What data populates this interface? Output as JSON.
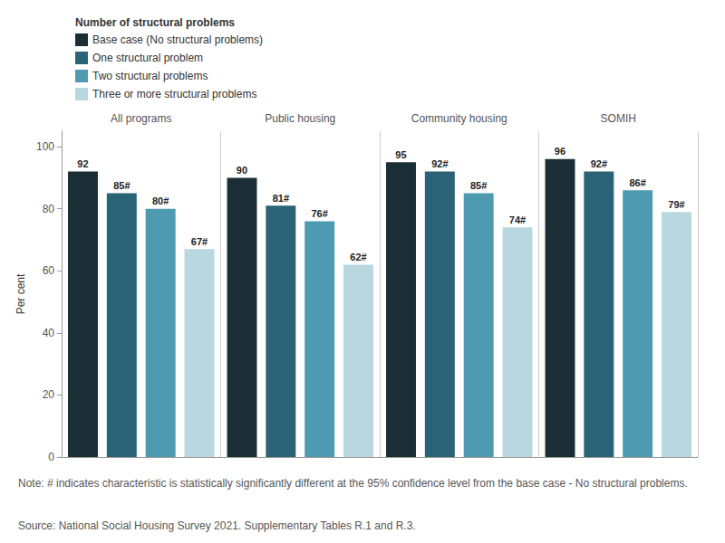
{
  "chart_data": {
    "type": "bar",
    "legend_title": "Number of structural problems",
    "categories": [
      "All programs",
      "Public housing",
      "Community housing",
      "SOMIH"
    ],
    "series": [
      {
        "name": "Base case (No structural problems)",
        "color": "#1b2e36",
        "values": [
          92,
          90,
          95,
          96
        ],
        "value_labels": [
          "92",
          "90",
          "95",
          "96"
        ]
      },
      {
        "name": "One structural problem",
        "color": "#2a6376",
        "values": [
          85,
          81,
          92,
          92
        ],
        "value_labels": [
          "85#",
          "81#",
          "92#",
          "92#"
        ]
      },
      {
        "name": "Two structural problems",
        "color": "#4e9ab0",
        "values": [
          80,
          76,
          85,
          86
        ],
        "value_labels": [
          "80#",
          "76#",
          "85#",
          "86#"
        ]
      },
      {
        "name": "Three or more structural problems",
        "color": "#b8d7df",
        "values": [
          67,
          62,
          74,
          79
        ],
        "value_labels": [
          "67#",
          "62#",
          "74#",
          "79#"
        ]
      }
    ],
    "ylabel": "Per cent",
    "ylim": [
      0,
      105
    ],
    "yticks": [
      0,
      20,
      40,
      60,
      80,
      100
    ],
    "grid": false,
    "legend": "top-left",
    "data_labels": true,
    "note": "Note: # indicates characteristic is statistically significantly different at the 95% confidence level from the base case - No structural problems.",
    "source": "Source: National Social Housing Survey 2021. Supplementary Tables R.1 and R.3."
  }
}
